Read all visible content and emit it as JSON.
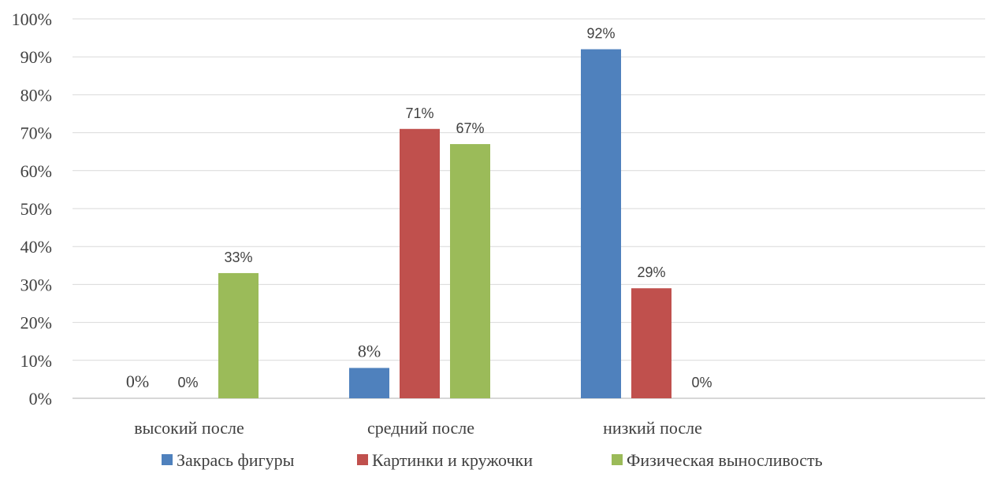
{
  "chart_data": {
    "type": "bar",
    "title": "",
    "xlabel": "",
    "ylabel": "",
    "ylim": [
      0,
      100
    ],
    "y_tick_labels": [
      "0%",
      "10%",
      "20%",
      "30%",
      "40%",
      "50%",
      "60%",
      "70%",
      "80%",
      "90%",
      "100%"
    ],
    "categories": [
      "высокий после",
      "средний после",
      "низкий после"
    ],
    "series": [
      {
        "name": "Закрась фигуры",
        "color": "#4f81bd",
        "values": [
          0,
          8,
          92
        ],
        "labels": [
          "0%",
          "8%",
          "92%"
        ]
      },
      {
        "name": "Картинки и кружочки",
        "color": "#c0504d",
        "values": [
          0,
          71,
          29
        ],
        "labels": [
          "0%",
          "71%",
          "29%"
        ]
      },
      {
        "name": "Физическая выносливость",
        "color": "#9bbb59",
        "values": [
          33,
          67,
          0
        ],
        "labels": [
          "33%",
          "67%",
          "0%"
        ]
      }
    ],
    "grid": true,
    "legend_position": "bottom"
  }
}
